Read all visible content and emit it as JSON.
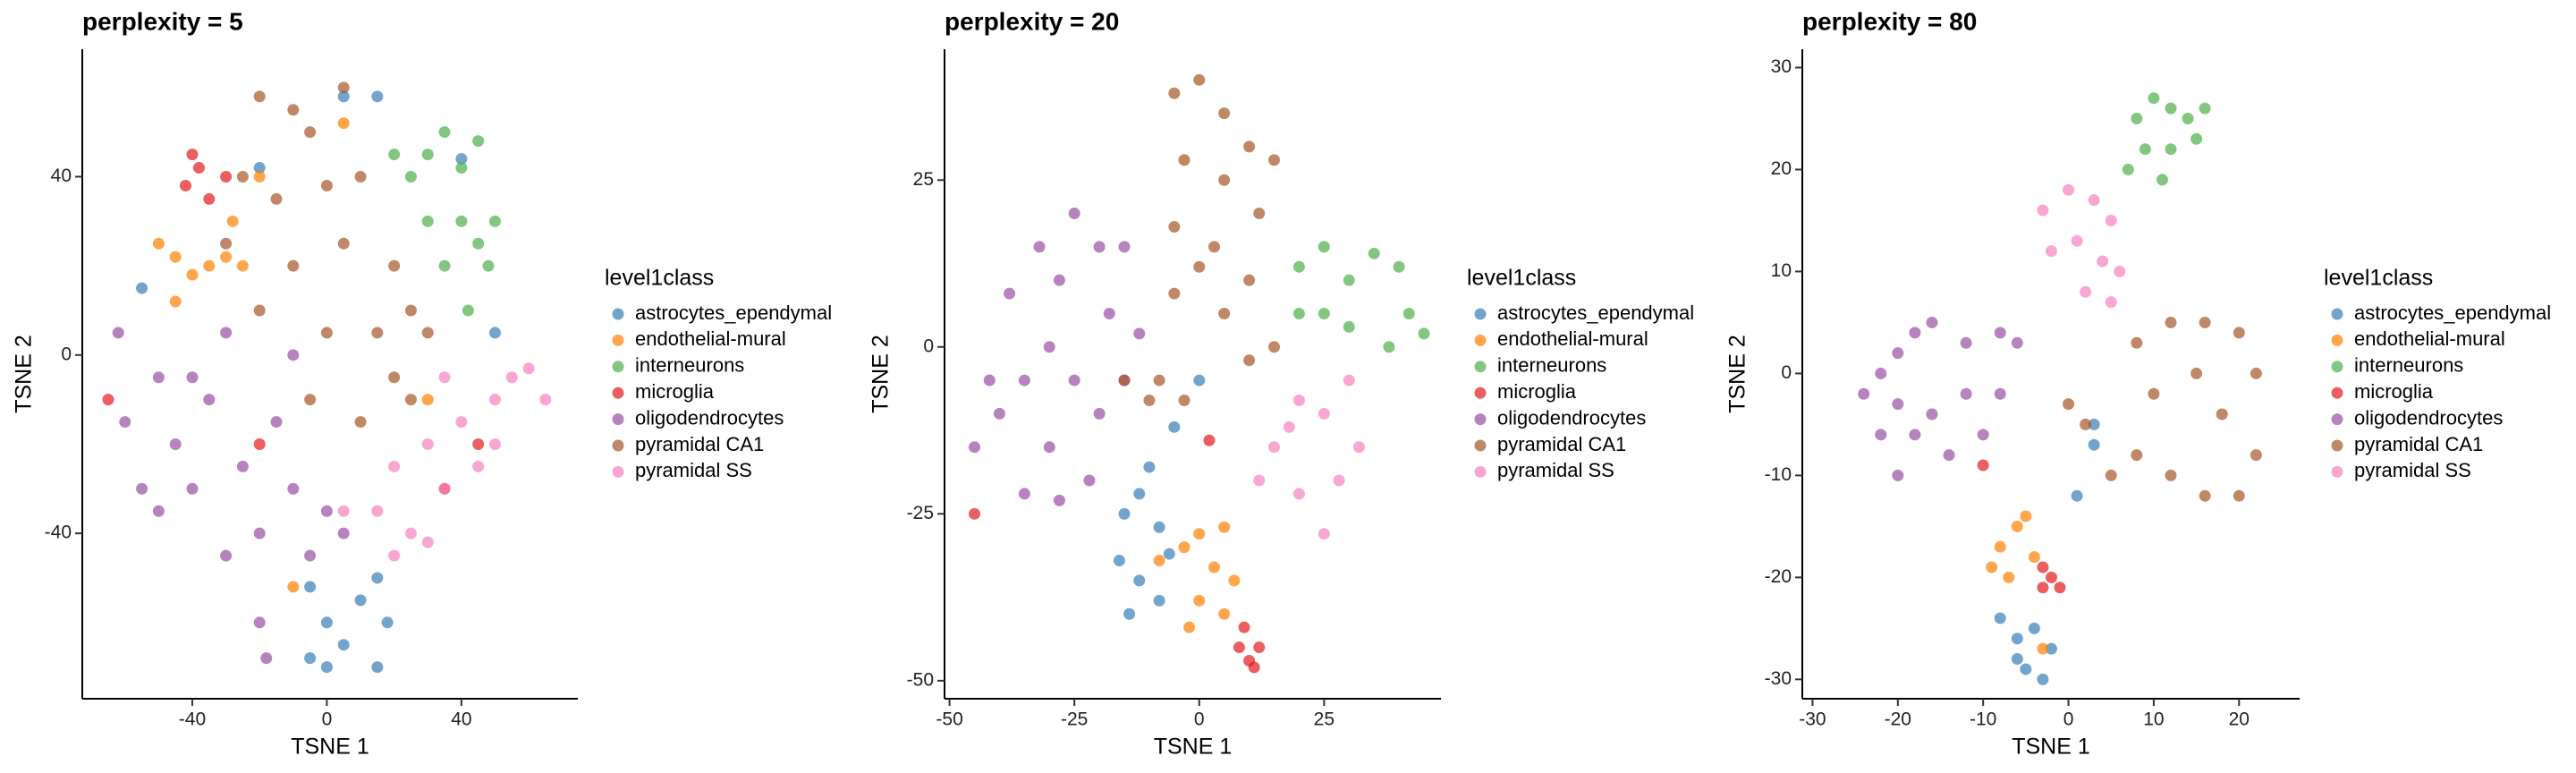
{
  "chart_data": [
    {
      "type": "scatter",
      "title": "perplexity = 5",
      "xlabel": "TSNE 1",
      "ylabel": "TSNE 2",
      "legend_title": "level1class",
      "xlim": [
        -72.7,
        74.6
      ],
      "ylim": [
        -77.1,
        68.6
      ],
      "xticks": [
        -40,
        0,
        40
      ],
      "yticks": [
        -40,
        0,
        40
      ],
      "series": [
        {
          "name": "astrocytes_ependymal",
          "color": "#377eb8",
          "x": [
            -5,
            0,
            5,
            10,
            15,
            18,
            0,
            -5,
            15,
            -20,
            -55,
            40,
            5,
            15,
            50
          ],
          "y": [
            -52,
            -60,
            -65,
            -55,
            -50,
            -60,
            -70,
            -68,
            -70,
            42,
            15,
            44,
            58,
            58,
            5
          ]
        },
        {
          "name": "endothelial-mural",
          "color": "#ff7f00",
          "x": [
            -50,
            -45,
            -40,
            -35,
            -30,
            -45,
            -28,
            -25,
            -20,
            5,
            30,
            -10
          ],
          "y": [
            25,
            22,
            18,
            20,
            22,
            12,
            30,
            20,
            40,
            52,
            -10,
            -52
          ]
        },
        {
          "name": "interneurons",
          "color": "#4daf4a",
          "x": [
            20,
            25,
            30,
            35,
            40,
            45,
            30,
            40,
            45,
            48,
            50,
            42,
            35
          ],
          "y": [
            45,
            40,
            45,
            50,
            42,
            48,
            30,
            30,
            25,
            20,
            30,
            10,
            20
          ]
        },
        {
          "name": "microglia",
          "color": "#e41a1c",
          "x": [
            -42,
            -38,
            -35,
            -40,
            -30,
            -20,
            35,
            45,
            -65
          ],
          "y": [
            38,
            42,
            35,
            45,
            40,
            -20,
            -30,
            -20,
            -10
          ]
        },
        {
          "name": "oligodendrocytes",
          "color": "#984ea3",
          "x": [
            -62,
            -60,
            -50,
            -45,
            -40,
            -35,
            -30,
            -25,
            -20,
            -15,
            -10,
            -5,
            0,
            5,
            -50,
            -55,
            -30,
            -20,
            -18,
            -10,
            -40
          ],
          "y": [
            5,
            -15,
            -5,
            -20,
            -30,
            -10,
            5,
            -25,
            -40,
            -15,
            -30,
            -45,
            -35,
            -40,
            -35,
            -30,
            -45,
            -60,
            -68,
            0,
            -5
          ]
        },
        {
          "name": "pyramidal CA1",
          "color": "#a65628",
          "x": [
            -20,
            -10,
            -5,
            5,
            -25,
            -15,
            0,
            10,
            -30,
            -10,
            5,
            20,
            -20,
            0,
            15,
            25,
            -5,
            10,
            20,
            25,
            30
          ],
          "y": [
            58,
            55,
            50,
            60,
            40,
            35,
            38,
            40,
            25,
            20,
            25,
            20,
            10,
            5,
            5,
            10,
            -10,
            -15,
            -5,
            -10,
            5
          ]
        },
        {
          "name": "pyramidal SS",
          "color": "#f781bf",
          "x": [
            15,
            20,
            25,
            30,
            35,
            40,
            45,
            50,
            55,
            60,
            65,
            50,
            35,
            30,
            20,
            5
          ],
          "y": [
            -35,
            -25,
            -40,
            -20,
            -30,
            -15,
            -25,
            -10,
            -5,
            -3,
            -10,
            -20,
            -5,
            -42,
            -45,
            -35
          ]
        }
      ]
    },
    {
      "type": "scatter",
      "title": "perplexity = 20",
      "xlabel": "TSNE 1",
      "ylabel": "TSNE 2",
      "legend_title": "level1class",
      "xlim": [
        -51,
        48.4
      ],
      "ylim": [
        -52.7,
        44.6
      ],
      "xticks": [
        -50,
        -25,
        0,
        25
      ],
      "yticks": [
        -50,
        -25,
        0,
        25
      ],
      "series": [
        {
          "name": "astrocytes_ependymal",
          "color": "#377eb8",
          "x": [
            -15,
            -12,
            -8,
            -16,
            -12,
            -8,
            -14,
            -6,
            0,
            -5,
            -10
          ],
          "y": [
            -25,
            -22,
            -27,
            -32,
            -35,
            -38,
            -40,
            -31,
            -5,
            -12,
            -18
          ]
        },
        {
          "name": "endothelial-mural",
          "color": "#ff7f00",
          "x": [
            -3,
            0,
            5,
            3,
            0,
            5,
            -2,
            7,
            -8
          ],
          "y": [
            -30,
            -28,
            -27,
            -33,
            -38,
            -40,
            -42,
            -35,
            -32
          ]
        },
        {
          "name": "interneurons",
          "color": "#4daf4a",
          "x": [
            20,
            25,
            30,
            35,
            40,
            42,
            38,
            30,
            25,
            45,
            20
          ],
          "y": [
            12,
            15,
            10,
            14,
            12,
            5,
            0,
            3,
            5,
            2,
            5
          ]
        },
        {
          "name": "microglia",
          "color": "#e41a1c",
          "x": [
            8,
            10,
            12,
            11,
            9,
            2,
            -45
          ],
          "y": [
            -45,
            -47,
            -45,
            -48,
            -42,
            -14,
            -25
          ]
        },
        {
          "name": "oligodendrocytes",
          "color": "#984ea3",
          "x": [
            -45,
            -40,
            -35,
            -30,
            -28,
            -25,
            -20,
            -32,
            -38,
            -25,
            -20,
            -15,
            -18,
            -12,
            -30,
            -22,
            -35,
            -28,
            -42,
            -15
          ],
          "y": [
            -15,
            -10,
            -5,
            0,
            10,
            20,
            15,
            15,
            8,
            -5,
            -10,
            -5,
            5,
            2,
            -15,
            -20,
            -22,
            -23,
            -5,
            15
          ]
        },
        {
          "name": "pyramidal CA1",
          "color": "#a65628",
          "x": [
            -5,
            0,
            5,
            10,
            -3,
            5,
            12,
            -5,
            3,
            10,
            -5,
            5,
            0,
            15,
            -3,
            -8,
            10,
            15,
            -10,
            -15
          ],
          "y": [
            38,
            40,
            35,
            30,
            28,
            25,
            20,
            18,
            15,
            10,
            8,
            5,
            12,
            28,
            -8,
            -5,
            -2,
            0,
            -8,
            -5
          ]
        },
        {
          "name": "pyramidal SS",
          "color": "#f781bf",
          "x": [
            15,
            20,
            25,
            30,
            32,
            28,
            25,
            20,
            12,
            18
          ],
          "y": [
            -15,
            -8,
            -10,
            -5,
            -15,
            -20,
            -28,
            -22,
            -20,
            -12
          ]
        }
      ]
    },
    {
      "type": "scatter",
      "title": "perplexity = 80",
      "xlabel": "TSNE 1",
      "ylabel": "TSNE 2",
      "legend_title": "level1class",
      "xlim": [
        -31.2,
        27.1
      ],
      "ylim": [
        -31.9,
        31.8
      ],
      "xticks": [
        -30,
        -20,
        -10,
        0,
        10,
        20
      ],
      "yticks": [
        -30,
        -20,
        -10,
        0,
        10,
        20,
        30
      ],
      "series": [
        {
          "name": "astrocytes_ependymal",
          "color": "#377eb8",
          "x": [
            -6,
            -4,
            -2,
            -5,
            -3,
            -6,
            -8,
            3,
            3,
            1
          ],
          "y": [
            -26,
            -25,
            -27,
            -29,
            -30,
            -28,
            -24,
            -7,
            -5,
            -12
          ]
        },
        {
          "name": "endothelial-mural",
          "color": "#ff7f00",
          "x": [
            -8,
            -6,
            -5,
            -7,
            -9,
            -4,
            -3
          ],
          "y": [
            -17,
            -15,
            -14,
            -20,
            -19,
            -18,
            -27
          ]
        },
        {
          "name": "interneurons",
          "color": "#4daf4a",
          "x": [
            8,
            10,
            12,
            14,
            16,
            9,
            12,
            7,
            11,
            15
          ],
          "y": [
            25,
            27,
            26,
            25,
            26,
            22,
            22,
            20,
            19,
            23
          ]
        },
        {
          "name": "microglia",
          "color": "#e41a1c",
          "x": [
            -3,
            -2,
            -1,
            -3,
            -10
          ],
          "y": [
            -19,
            -20,
            -21,
            -21,
            -9
          ]
        },
        {
          "name": "oligodendrocytes",
          "color": "#984ea3",
          "x": [
            -24,
            -22,
            -20,
            -18,
            -16,
            -12,
            -8,
            -6,
            -20,
            -16,
            -12,
            -18,
            -14,
            -10,
            -22,
            -20,
            -8
          ],
          "y": [
            -2,
            0,
            2,
            4,
            5,
            3,
            4,
            3,
            -3,
            -4,
            -2,
            -6,
            -8,
            -6,
            -6,
            -10,
            -2
          ]
        },
        {
          "name": "pyramidal CA1",
          "color": "#a65628",
          "x": [
            8,
            12,
            16,
            20,
            22,
            10,
            15,
            18,
            22,
            8,
            12,
            16,
            20,
            5,
            2,
            0
          ],
          "y": [
            3,
            5,
            5,
            4,
            0,
            -2,
            0,
            -4,
            -8,
            -8,
            -10,
            -12,
            -12,
            -10,
            -5,
            -3
          ]
        },
        {
          "name": "pyramidal SS",
          "color": "#f781bf",
          "x": [
            -3,
            0,
            3,
            5,
            -2,
            1,
            4,
            2,
            5,
            6
          ],
          "y": [
            16,
            18,
            17,
            15,
            12,
            13,
            11,
            8,
            7,
            10
          ]
        }
      ]
    }
  ]
}
